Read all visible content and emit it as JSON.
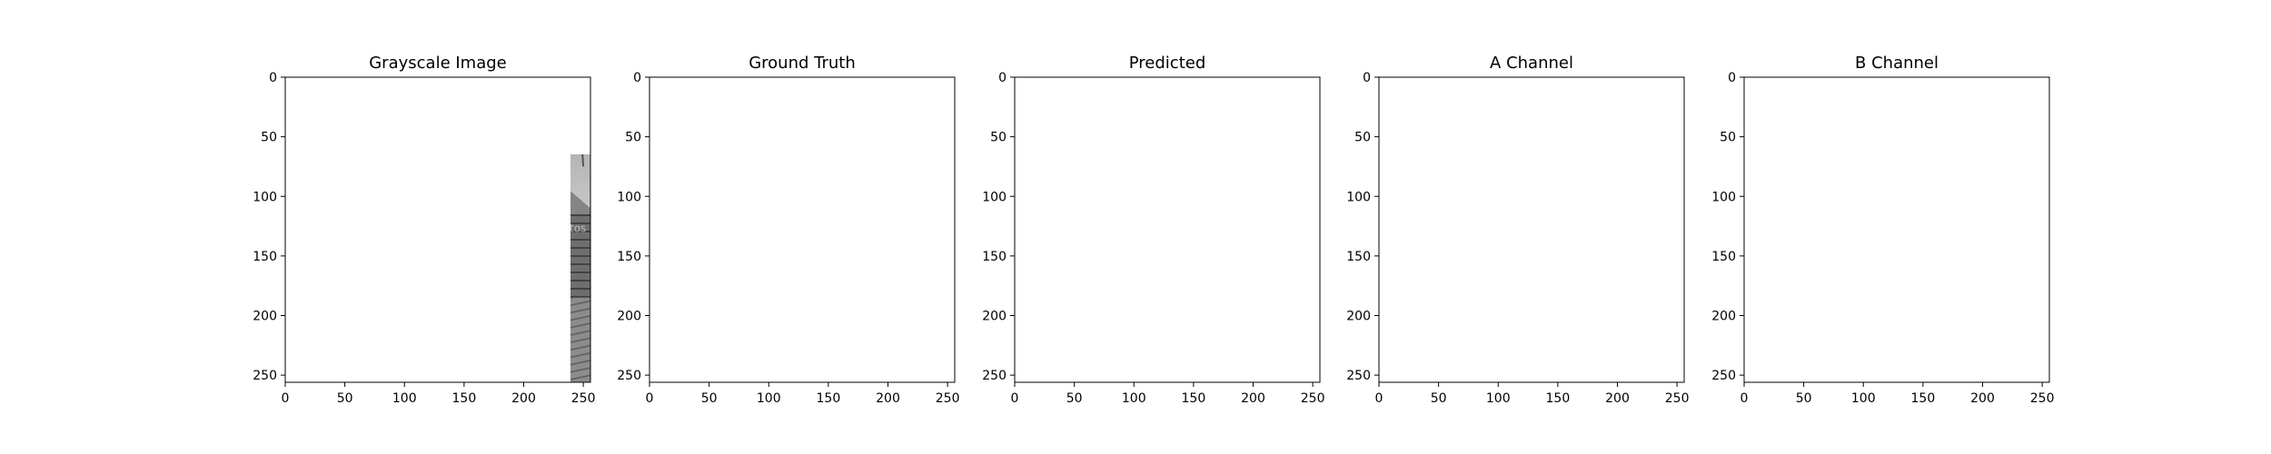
{
  "chart_data": [
    {
      "type": "image",
      "title": "Grayscale Image",
      "image_kind": "grayscale",
      "xlim": [
        0,
        256
      ],
      "ylim": [
        256,
        0
      ],
      "xticks": [
        0,
        50,
        100,
        150,
        200,
        250
      ],
      "yticks": [
        0,
        50,
        100,
        150,
        200,
        250
      ]
    },
    {
      "type": "image",
      "title": "Ground Truth",
      "image_kind": "color-true",
      "xlim": [
        0,
        256
      ],
      "ylim": [
        256,
        0
      ],
      "xticks": [
        0,
        50,
        100,
        150,
        200,
        250
      ],
      "yticks": [
        0,
        50,
        100,
        150,
        200,
        250
      ]
    },
    {
      "type": "image",
      "title": "Predicted",
      "image_kind": "color-pred",
      "xlim": [
        0,
        256
      ],
      "ylim": [
        256,
        0
      ],
      "xticks": [
        0,
        50,
        100,
        150,
        200,
        250
      ],
      "yticks": [
        0,
        50,
        100,
        150,
        200,
        250
      ]
    },
    {
      "type": "image",
      "title": "A Channel",
      "image_kind": "channel-a",
      "xlim": [
        0,
        256
      ],
      "ylim": [
        256,
        0
      ],
      "xticks": [
        0,
        50,
        100,
        150,
        200,
        250
      ],
      "yticks": [
        0,
        50,
        100,
        150,
        200,
        250
      ]
    },
    {
      "type": "image",
      "title": "B Channel",
      "image_kind": "channel-b",
      "xlim": [
        0,
        256
      ],
      "ylim": [
        256,
        0
      ],
      "xticks": [
        0,
        50,
        100,
        150,
        200,
        250
      ],
      "yticks": [
        0,
        50,
        100,
        150,
        200,
        250
      ]
    }
  ],
  "watermark_text": "depositphotos"
}
